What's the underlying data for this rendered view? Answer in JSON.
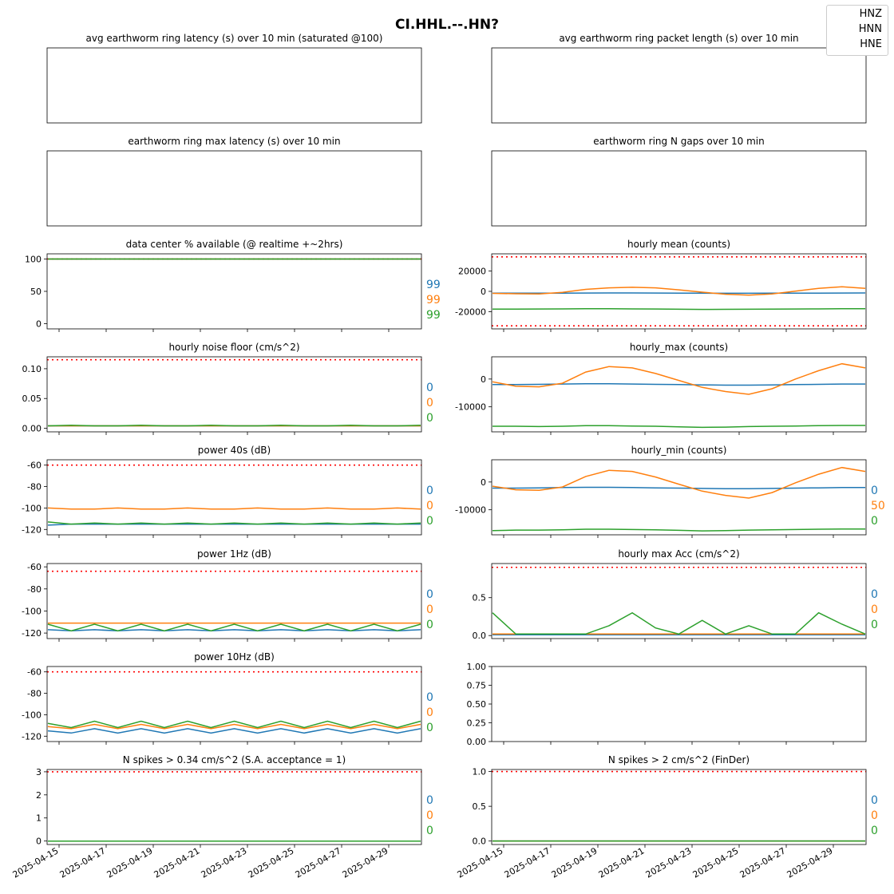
{
  "figure": {
    "suptitle": "CI.HHL.--.HN?",
    "legend": [
      "HNZ",
      "HNN",
      "HNE"
    ],
    "series_colors": [
      "#1f77b4",
      "#ff7f0e",
      "#2ca02c"
    ],
    "threshold_color": "#ff0000",
    "date_ticks": [
      "2025-04-15",
      "2025-04-17",
      "2025-04-19",
      "2025-04-21",
      "2025-04-23",
      "2025-04-25",
      "2025-04-27",
      "2025-04-29"
    ]
  },
  "chart_data": [
    {
      "id": "p00",
      "type": "line",
      "title": "avg earthworm ring latency (s)   over 10 min (saturated @100)",
      "empty": true,
      "series": []
    },
    {
      "id": "p01",
      "type": "line",
      "title": "avg earthworm ring packet length (s)   over 10 min",
      "empty": true,
      "series": []
    },
    {
      "id": "p10",
      "type": "line",
      "title": "earthworm ring max latency (s)   over 10 min",
      "empty": true,
      "series": []
    },
    {
      "id": "p11",
      "type": "line",
      "title": "earthworm ring N gaps   over 10 min",
      "empty": true,
      "series": []
    },
    {
      "id": "p20",
      "type": "line",
      "title": "data center % available (@ realtime +~2hrs)",
      "ylim": [
        -8,
        108
      ],
      "yticks": [
        "0",
        "50",
        "100"
      ],
      "threshold": 100,
      "annotations": [
        "99",
        "99",
        "99"
      ],
      "series": [
        {
          "name": "HNZ",
          "values": [
            100,
            100,
            100,
            100,
            100,
            100,
            100,
            100,
            100,
            100,
            100,
            100,
            100,
            100,
            100,
            100,
            100
          ]
        },
        {
          "name": "HNN",
          "values": [
            100,
            100,
            100,
            100,
            100,
            100,
            100,
            100,
            100,
            100,
            100,
            100,
            100,
            100,
            100,
            100,
            100
          ]
        },
        {
          "name": "HNE",
          "values": [
            100,
            100,
            100,
            100,
            100,
            100,
            100,
            100,
            100,
            100,
            100,
            100,
            100,
            100,
            100,
            100,
            100
          ]
        }
      ]
    },
    {
      "id": "p21",
      "type": "line",
      "title": "hourly mean (counts)",
      "ylim": [
        -37000,
        37000
      ],
      "yticks": [
        "-20000",
        "0",
        "20000"
      ],
      "threshold": [
        34000,
        -34000
      ],
      "annotations": [],
      "series": [
        {
          "name": "HNZ",
          "values": [
            -1800,
            -1800,
            -1750,
            -1700,
            -1650,
            -1600,
            -1600,
            -1650,
            -1700,
            -1800,
            -1900,
            -1900,
            -1800,
            -1750,
            -1700,
            -1650,
            -1600
          ]
        },
        {
          "name": "HNN",
          "values": [
            -2000,
            -2400,
            -2600,
            -1000,
            2000,
            3500,
            4000,
            3500,
            1500,
            -800,
            -2800,
            -3800,
            -2500,
            200,
            3000,
            4500,
            3000
          ]
        },
        {
          "name": "HNE",
          "values": [
            -17500,
            -17500,
            -17400,
            -17300,
            -17200,
            -17200,
            -17300,
            -17400,
            -17600,
            -17800,
            -17700,
            -17600,
            -17500,
            -17400,
            -17300,
            -17200,
            -17200
          ]
        }
      ]
    },
    {
      "id": "p30",
      "type": "line",
      "title": "hourly noise floor (cm/s^2)",
      "ylim": [
        -0.006,
        0.12
      ],
      "yticks": [
        "0.00",
        "0.05",
        "0.10"
      ],
      "threshold": 0.115,
      "annotations": [
        "0",
        "0",
        "0"
      ],
      "series": [
        {
          "name": "HNZ",
          "values": [
            0.004,
            0.004,
            0.004,
            0.004,
            0.004,
            0.004,
            0.004,
            0.004,
            0.004,
            0.004,
            0.004,
            0.004,
            0.004,
            0.004,
            0.004,
            0.004,
            0.004
          ]
        },
        {
          "name": "HNN",
          "values": [
            0.004,
            0.004,
            0.004,
            0.004,
            0.004,
            0.004,
            0.004,
            0.004,
            0.004,
            0.004,
            0.004,
            0.004,
            0.004,
            0.004,
            0.004,
            0.004,
            0.004
          ]
        },
        {
          "name": "HNE",
          "values": [
            0.004,
            0.005,
            0.004,
            0.004,
            0.005,
            0.004,
            0.004,
            0.005,
            0.004,
            0.004,
            0.005,
            0.004,
            0.004,
            0.005,
            0.004,
            0.004,
            0.005
          ]
        }
      ]
    },
    {
      "id": "p31",
      "type": "line",
      "title": "hourly_max (counts)",
      "ylim": [
        -19000,
        8000
      ],
      "yticks": [
        "-10000",
        "0"
      ],
      "annotations": [],
      "series": [
        {
          "name": "HNZ",
          "values": [
            -2000,
            -2000,
            -1900,
            -1800,
            -1700,
            -1700,
            -1800,
            -1900,
            -2000,
            -2100,
            -2200,
            -2200,
            -2100,
            -2000,
            -1900,
            -1800,
            -1800
          ]
        },
        {
          "name": "HNN",
          "values": [
            -1000,
            -2600,
            -2800,
            -1500,
            2500,
            4500,
            4000,
            2000,
            -500,
            -3000,
            -4500,
            -5500,
            -3500,
            0,
            3000,
            5500,
            4000
          ]
        },
        {
          "name": "HNE",
          "values": [
            -17000,
            -17000,
            -17100,
            -17000,
            -16800,
            -16800,
            -16900,
            -17000,
            -17200,
            -17400,
            -17300,
            -17100,
            -17000,
            -16900,
            -16800,
            -16700,
            -16700
          ]
        }
      ]
    },
    {
      "id": "p40",
      "type": "line",
      "title": "power 40s (dB)",
      "ylim": [
        -125,
        -55
      ],
      "yticks": [
        "-120",
        "-100",
        "-80",
        "-60"
      ],
      "threshold": -60,
      "annotations": [
        "0",
        "0",
        "0"
      ],
      "series": [
        {
          "name": "HNZ",
          "values": [
            -116,
            -115,
            -115,
            -115,
            -115,
            -115,
            -115,
            -115,
            -115,
            -115,
            -115,
            -115,
            -115,
            -115,
            -115,
            -115,
            -115
          ]
        },
        {
          "name": "HNN",
          "values": [
            -100,
            -101,
            -101,
            -100,
            -101,
            -101,
            -100,
            -101,
            -101,
            -100,
            -101,
            -101,
            -100,
            -101,
            -101,
            -100,
            -101
          ]
        },
        {
          "name": "HNE",
          "values": [
            -113,
            -115,
            -114,
            -115,
            -114,
            -115,
            -114,
            -115,
            -114,
            -115,
            -114,
            -115,
            -114,
            -115,
            -114,
            -115,
            -114
          ]
        }
      ]
    },
    {
      "id": "p41",
      "type": "line",
      "title": "hourly_min (counts)",
      "ylim": [
        -19000,
        8000
      ],
      "yticks": [
        "-10000",
        "0"
      ],
      "annotations": [
        "0",
        "50",
        "0"
      ],
      "series": [
        {
          "name": "HNZ",
          "values": [
            -2200,
            -2200,
            -2100,
            -2000,
            -1900,
            -1900,
            -2000,
            -2100,
            -2200,
            -2300,
            -2400,
            -2400,
            -2300,
            -2200,
            -2100,
            -2000,
            -2000
          ]
        },
        {
          "name": "HNN",
          "values": [
            -1500,
            -2800,
            -3000,
            -1800,
            2000,
            4200,
            3800,
            1800,
            -800,
            -3300,
            -4800,
            -5800,
            -3800,
            -300,
            2800,
            5200,
            3800
          ]
        },
        {
          "name": "HNE",
          "values": [
            -17500,
            -17300,
            -17300,
            -17200,
            -17000,
            -17000,
            -17100,
            -17200,
            -17400,
            -17600,
            -17500,
            -17300,
            -17200,
            -17100,
            -17000,
            -16900,
            -16900
          ]
        }
      ]
    },
    {
      "id": "p50",
      "type": "line",
      "title": "power 1Hz (dB)",
      "ylim": [
        -125,
        -57
      ],
      "yticks": [
        "-120",
        "-100",
        "-80",
        "-60"
      ],
      "threshold": -64,
      "annotations": [
        "0",
        "0",
        "0"
      ],
      "series": [
        {
          "name": "HNZ",
          "values": [
            -117,
            -118,
            -117,
            -118,
            -117,
            -118,
            -117,
            -118,
            -117,
            -118,
            -117,
            -118,
            -117,
            -118,
            -117,
            -118,
            -117
          ]
        },
        {
          "name": "HNN",
          "values": [
            -111,
            -111,
            -111,
            -111,
            -111,
            -111,
            -111,
            -111,
            -111,
            -111,
            -111,
            -111,
            -111,
            -111,
            -111,
            -111,
            -111
          ]
        },
        {
          "name": "HNE",
          "values": [
            -112,
            -118,
            -112,
            -118,
            -112,
            -118,
            -112,
            -118,
            -112,
            -118,
            -112,
            -118,
            -112,
            -118,
            -112,
            -118,
            -112
          ]
        }
      ]
    },
    {
      "id": "p51",
      "type": "line",
      "title": "hourly max Acc (cm/s^2)",
      "ylim": [
        -0.04,
        0.95
      ],
      "yticks": [
        "0.0",
        "0.5"
      ],
      "threshold": 0.9,
      "annotations": [
        "0",
        "0",
        "0"
      ],
      "series": [
        {
          "name": "HNZ",
          "values": [
            0.01,
            0.01,
            0.01,
            0.01,
            0.01,
            0.01,
            0.01,
            0.01,
            0.01,
            0.01,
            0.01,
            0.01,
            0.01,
            0.01,
            0.01,
            0.01,
            0.01
          ]
        },
        {
          "name": "HNN",
          "values": [
            0.02,
            0.02,
            0.02,
            0.02,
            0.02,
            0.02,
            0.02,
            0.02,
            0.02,
            0.02,
            0.02,
            0.02,
            0.02,
            0.02,
            0.02,
            0.02,
            0.02
          ]
        },
        {
          "name": "HNE",
          "values": [
            0.3,
            0.02,
            0.02,
            0.02,
            0.02,
            0.13,
            0.3,
            0.1,
            0.02,
            0.2,
            0.02,
            0.13,
            0.02,
            0.02,
            0.3,
            0.15,
            0.02
          ]
        }
      ]
    },
    {
      "id": "p60",
      "type": "line",
      "title": "power 10Hz (dB)",
      "ylim": [
        -125,
        -55
      ],
      "yticks": [
        "-120",
        "-100",
        "-80",
        "-60"
      ],
      "threshold": -60,
      "annotations": [
        "0",
        "0",
        "0"
      ],
      "series": [
        {
          "name": "HNZ",
          "values": [
            -115,
            -117,
            -113,
            -117,
            -113,
            -117,
            -113,
            -117,
            -113,
            -117,
            -113,
            -117,
            -113,
            -117,
            -113,
            -117,
            -113
          ]
        },
        {
          "name": "HNN",
          "values": [
            -111,
            -113,
            -109,
            -113,
            -109,
            -113,
            -109,
            -113,
            -109,
            -113,
            -109,
            -113,
            -109,
            -113,
            -109,
            -113,
            -109
          ]
        },
        {
          "name": "HNE",
          "values": [
            -108,
            -112,
            -106,
            -112,
            -106,
            -112,
            -106,
            -112,
            -106,
            -112,
            -106,
            -112,
            -106,
            -112,
            -106,
            -112,
            -106
          ]
        }
      ]
    },
    {
      "id": "p61",
      "type": "line",
      "title": "",
      "empty": true,
      "ylim": [
        0,
        1
      ],
      "yticks": [
        "0.00",
        "0.25",
        "0.50",
        "0.75",
        "1.00"
      ],
      "series": []
    },
    {
      "id": "p70",
      "type": "line",
      "title": "N spikes > 0.34 cm/s^2 (S.A. acceptance = 1)",
      "ylim": [
        -0.15,
        3.1
      ],
      "yticks": [
        "0",
        "1",
        "2",
        "3"
      ],
      "threshold": 3,
      "annotations": [
        "0",
        "0",
        "0"
      ],
      "series": [
        {
          "name": "HNZ",
          "values": [
            0,
            0,
            0,
            0,
            0,
            0,
            0,
            0,
            0,
            0,
            0,
            0,
            0,
            0,
            0,
            0,
            0
          ]
        },
        {
          "name": "HNN",
          "values": [
            0,
            0,
            0,
            0,
            0,
            0,
            0,
            0,
            0,
            0,
            0,
            0,
            0,
            0,
            0,
            0,
            0
          ]
        },
        {
          "name": "HNE",
          "values": [
            0,
            0,
            0,
            0,
            0,
            0,
            0,
            0,
            0,
            0,
            0,
            0,
            0,
            0,
            0,
            0,
            0
          ]
        }
      ]
    },
    {
      "id": "p71",
      "type": "line",
      "title": "N spikes > 2 cm/s^2 (FinDer)",
      "ylim": [
        -0.05,
        1.03
      ],
      "yticks": [
        "0.0",
        "0.5",
        "1.0"
      ],
      "threshold": 1,
      "annotations": [
        "0",
        "0",
        "0"
      ],
      "series": [
        {
          "name": "HNZ",
          "values": [
            0,
            0,
            0,
            0,
            0,
            0,
            0,
            0,
            0,
            0,
            0,
            0,
            0,
            0,
            0,
            0,
            0
          ]
        },
        {
          "name": "HNN",
          "values": [
            0,
            0,
            0,
            0,
            0,
            0,
            0,
            0,
            0,
            0,
            0,
            0,
            0,
            0,
            0,
            0,
            0
          ]
        },
        {
          "name": "HNE",
          "values": [
            0,
            0,
            0,
            0,
            0,
            0,
            0,
            0,
            0,
            0,
            0,
            0,
            0,
            0,
            0,
            0,
            0
          ]
        }
      ]
    }
  ]
}
